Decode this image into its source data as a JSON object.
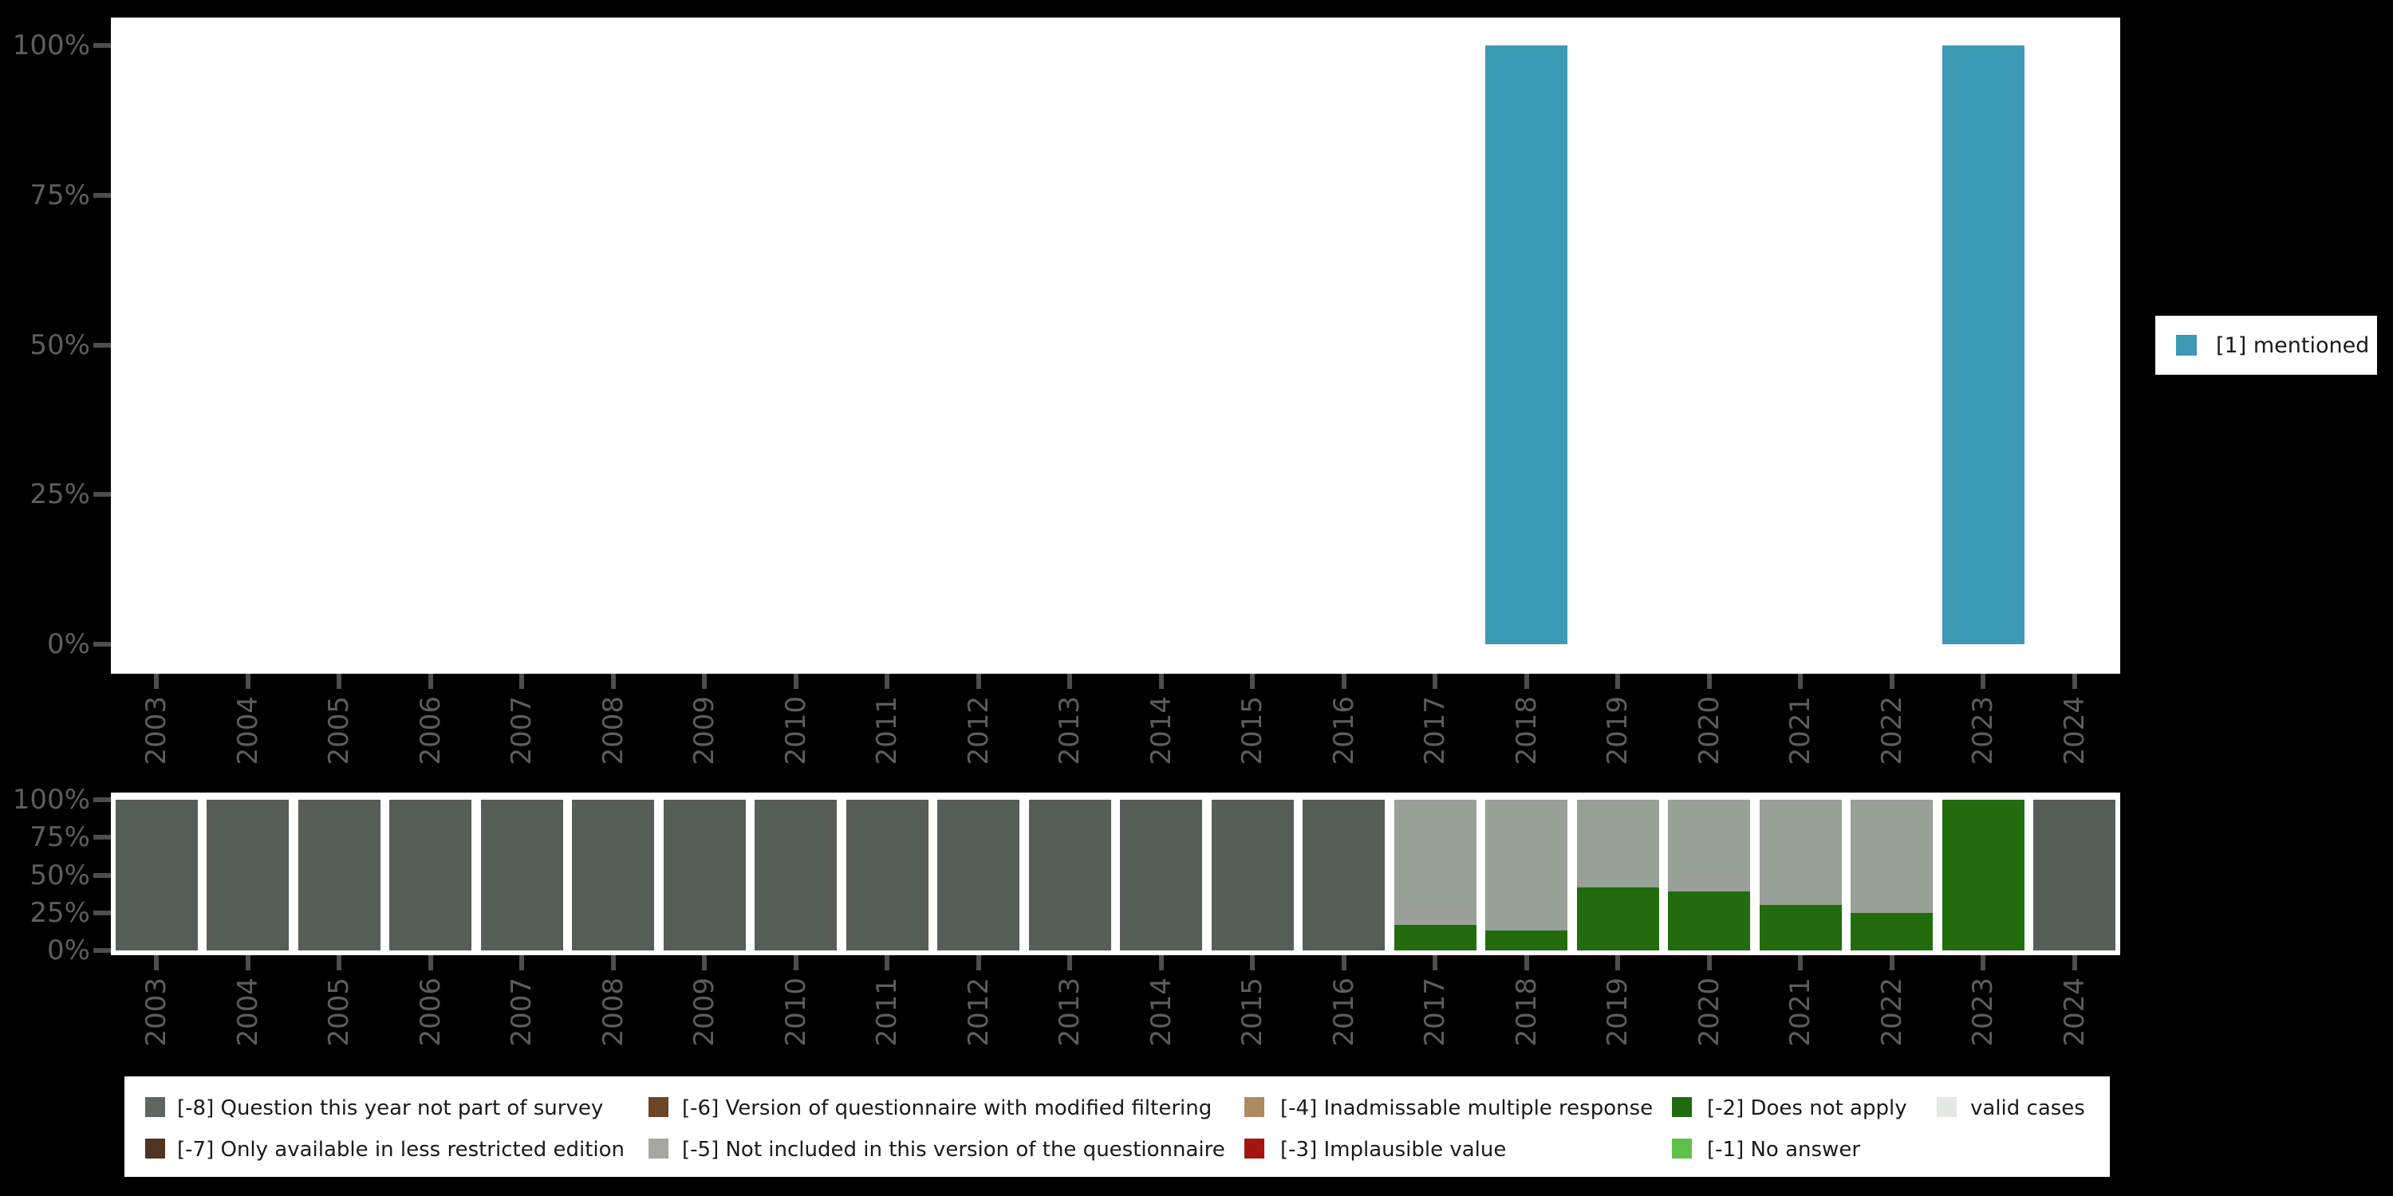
{
  "page": {
    "background": "#000000",
    "panel_background": "#ffffff"
  },
  "legend_top": {
    "label": "[1] mentioned",
    "color": "#3d9ab4"
  },
  "legend_bottom": {
    "items": [
      {
        "code": "[-8]",
        "label": "[-8] Question this year not part of survey",
        "color": "#5d675f"
      },
      {
        "code": "[-7]",
        "label": "[-7] Only available in less restricted edition",
        "color": "#4f3422"
      },
      {
        "code": "[-6]",
        "label": "[-6] Version of questionnaire with modified filtering",
        "color": "#6b4526"
      },
      {
        "code": "[-5]",
        "label": "[-5] Not included in this version of the questionnaire",
        "color": "#a3a8a0"
      },
      {
        "code": "[-4]",
        "label": "[-4] Inadmissable multiple response",
        "color": "#ad8a60"
      },
      {
        "code": "[-3]",
        "label": "[-3] Implausible value",
        "color": "#a41711"
      },
      {
        "code": "[-2]",
        "label": "[-2] Does not apply",
        "color": "#1f6b0d"
      },
      {
        "code": "[-1]",
        "label": "[-1] No answer",
        "color": "#5ec24a"
      },
      {
        "code": "valid",
        "label": "valid cases",
        "color": "#e4e8e2"
      }
    ]
  },
  "chart_data": [
    {
      "type": "bar",
      "stacked": true,
      "title": "",
      "categories": [
        "2003",
        "2004",
        "2005",
        "2006",
        "2007",
        "2008",
        "2009",
        "2010",
        "2011",
        "2012",
        "2013",
        "2014",
        "2015",
        "2016",
        "2017",
        "2018",
        "2019",
        "2020",
        "2021",
        "2022",
        "2023",
        "2024"
      ],
      "y_ticks": [
        {
          "label": "100%",
          "value": 100
        },
        {
          "label": "75%",
          "value": 75
        },
        {
          "label": "50%",
          "value": 50
        },
        {
          "label": "25%",
          "value": 25
        },
        {
          "label": "0%",
          "value": 0
        }
      ],
      "ylim": [
        0,
        100
      ],
      "grid": false,
      "legend_position": "right",
      "series": [
        {
          "name": "[1] mentioned",
          "color": "#3d9ab4",
          "values": [
            null,
            null,
            null,
            null,
            null,
            null,
            null,
            null,
            null,
            null,
            null,
            null,
            null,
            null,
            null,
            100,
            null,
            null,
            null,
            null,
            100,
            null
          ]
        }
      ]
    },
    {
      "type": "bar",
      "stacked": true,
      "title": "",
      "categories": [
        "2003",
        "2004",
        "2005",
        "2006",
        "2007",
        "2008",
        "2009",
        "2010",
        "2011",
        "2012",
        "2013",
        "2014",
        "2015",
        "2016",
        "2017",
        "2018",
        "2019",
        "2020",
        "2021",
        "2022",
        "2023",
        "2024"
      ],
      "y_ticks": [
        {
          "label": "100%",
          "value": 100
        },
        {
          "label": "75%",
          "value": 75
        },
        {
          "label": "50%",
          "value": 50
        },
        {
          "label": "25%",
          "value": 25
        },
        {
          "label": "0%",
          "value": 0
        }
      ],
      "ylim": [
        0,
        100
      ],
      "grid": false,
      "legend_position": "bottom",
      "series": [
        {
          "name": "[-2] Does not apply",
          "color": "#236c0e",
          "values": [
            0,
            0,
            0,
            0,
            0,
            0,
            0,
            0,
            0,
            0,
            0,
            0,
            0,
            0,
            17,
            13,
            42,
            39,
            30,
            25,
            100,
            0
          ]
        },
        {
          "name": "[-5] Not included in this version of the questionnaire",
          "color": "#98a098",
          "values": [
            0,
            0,
            0,
            0,
            0,
            0,
            0,
            0,
            0,
            0,
            0,
            0,
            0,
            0,
            83,
            87,
            58,
            61,
            70,
            75,
            0,
            0
          ]
        },
        {
          "name": "[-8] Question this year not part of survey",
          "color": "#565e57",
          "values": [
            100,
            100,
            100,
            100,
            100,
            100,
            100,
            100,
            100,
            100,
            100,
            100,
            100,
            100,
            0,
            0,
            0,
            0,
            0,
            0,
            0,
            100
          ]
        }
      ]
    }
  ]
}
